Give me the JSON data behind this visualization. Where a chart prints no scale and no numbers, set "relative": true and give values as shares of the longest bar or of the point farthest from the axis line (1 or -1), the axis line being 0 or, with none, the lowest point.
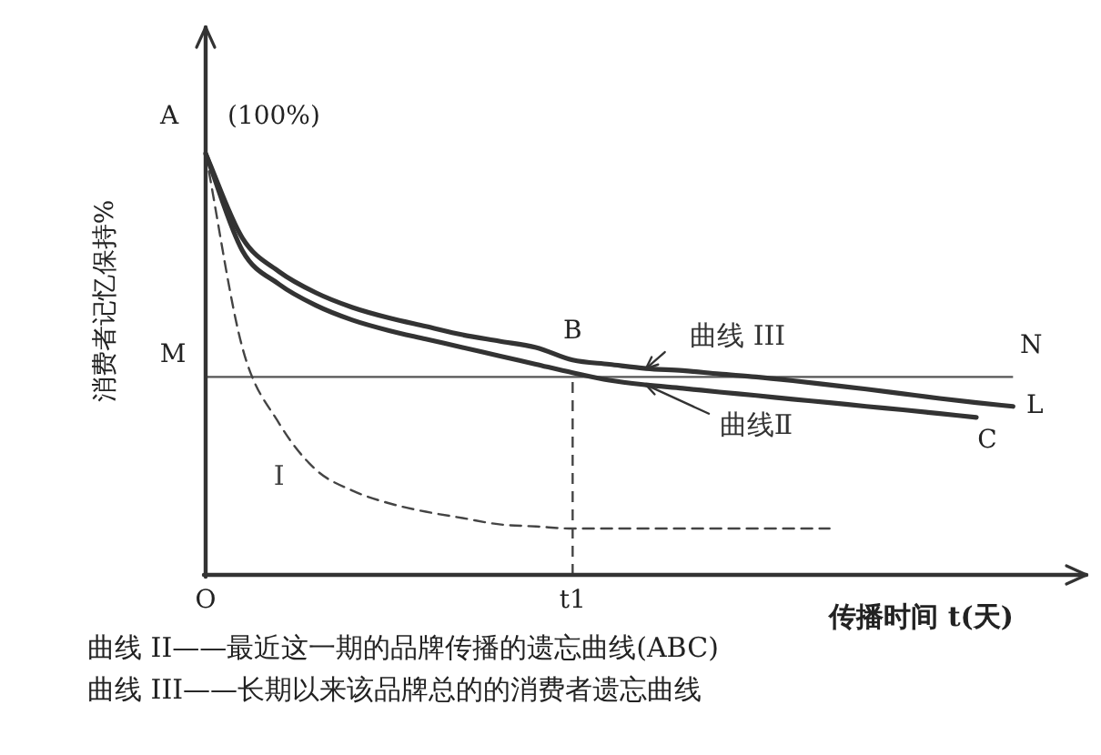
{
  "chart_data": {
    "type": "line",
    "relative": true,
    "xlabel": "传播时间 t(天)",
    "ylabel": "消费者记忆保持%",
    "categories": [
      "O",
      null,
      null,
      null,
      null,
      null,
      null,
      null,
      null,
      null,
      "t1",
      null,
      null,
      null,
      null,
      null,
      null,
      null,
      null,
      null,
      null,
      null,
      null,
      null,
      null
    ],
    "series": [
      {
        "name": "曲线Ⅱ",
        "color": "#333333",
        "values": [
          1.0,
          0.77,
          0.69,
          0.64,
          0.605,
          0.58,
          0.56,
          0.54,
          0.52,
          0.5,
          0.48,
          0.462,
          0.451,
          0.443,
          0.434,
          0.426,
          0.417,
          0.409,
          0.4,
          0.392,
          0.383,
          0.374,
          null,
          null,
          null
        ]
      },
      {
        "name": "曲线 III",
        "color": "#333333",
        "values": [
          1.0,
          0.8,
          0.72,
          0.67,
          0.635,
          0.61,
          0.59,
          0.57,
          0.555,
          0.54,
          0.51,
          0.5,
          0.49,
          0.485,
          0.477,
          0.47,
          0.461,
          0.451,
          0.441,
          0.43,
          0.419,
          0.409,
          0.4,
          null,
          null
        ]
      },
      {
        "name": "I",
        "color": "#444444",
        "line_style": "dashed",
        "values": [
          1.0,
          0.54,
          0.36,
          0.25,
          0.2,
          0.17,
          0.15,
          0.135,
          0.12,
          0.115,
          0.11,
          0.11,
          0.11,
          0.11,
          0.11,
          0.11,
          0.11,
          0.11,
          null,
          null,
          null,
          null,
          null,
          null,
          null
        ]
      }
    ],
    "ref_lines": [
      {
        "axis": "y",
        "value": 0.47,
        "label": "M",
        "color": "#555555"
      }
    ],
    "annotations": [
      "A",
      "(100%)",
      {
        "text": "B",
        "x": "t1",
        "y": 0.47
      },
      "N",
      "L",
      "C",
      "曲线 II——最近这一期的品牌传播的遗忘曲线(ABC)",
      "曲线 III——长期以来该品牌总的的消费者遗忘曲线"
    ],
    "marker": "none",
    "grid": false,
    "legend": false
  }
}
